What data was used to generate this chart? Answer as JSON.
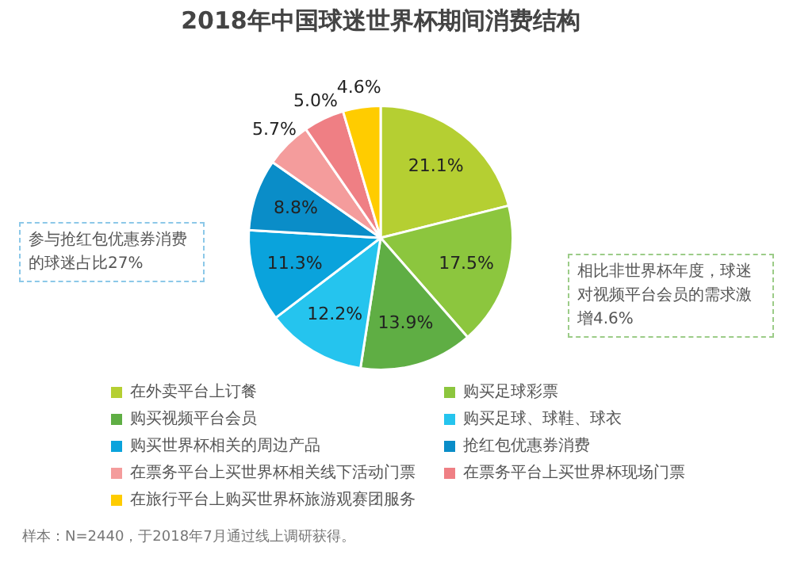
{
  "chart_data": {
    "type": "pie",
    "title": "2018年中国球迷世界杯期间消费结构",
    "categories": [
      "在外卖平台上订餐",
      "购买足球彩票",
      "购买视频平台会员",
      "购买足球、球鞋、球衣",
      "购买世界杯相关的周边产品",
      "抢红包优惠券消费",
      "在票务平台上买世界杯相关线下活动门票",
      "在票务平台上买世界杯现场门票",
      "在旅行平台上购买世界杯旅游观赛团服务"
    ],
    "values": [
      21.1,
      17.5,
      13.9,
      12.2,
      11.3,
      8.8,
      5.7,
      5.0,
      4.6
    ],
    "colors": [
      "#b5cf32",
      "#8cc63e",
      "#5fae44",
      "#25c4ee",
      "#0aa3dc",
      "#0a8dc8",
      "#f49c9c",
      "#ef7f84",
      "#ffcc00"
    ],
    "value_labels": [
      "21.1%",
      "17.5%",
      "13.9%",
      "12.2%",
      "11.3%",
      "8.8%",
      "5.7%",
      "5.0%",
      "4.6%"
    ],
    "legend": "bottom",
    "annotations": [
      "参与抢红包优惠券消费的球迷占比27%",
      "相比非世界杯年度，球迷对视频平台会员的需求激增4.6%",
      "样本：N=2440，于2018年7月通过线上调研获得。"
    ]
  }
}
